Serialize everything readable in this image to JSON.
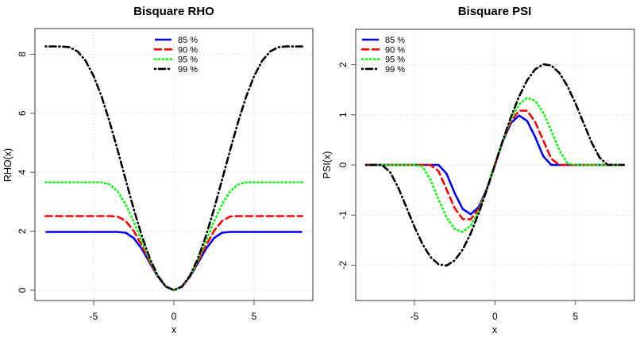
{
  "chart_data": [
    {
      "type": "line",
      "title": "Bisquare RHO",
      "xlabel": "x",
      "ylabel": "RHO(x)",
      "xlim": [
        -8,
        8
      ],
      "ylim": [
        0,
        8.27
      ],
      "xticks": [
        -5,
        0,
        5
      ],
      "yticks": [
        0,
        2,
        4,
        6,
        8
      ],
      "grid": true,
      "legend_position": "top-center",
      "x": [
        -8,
        -7.5,
        -7,
        -6.5,
        -6,
        -5.5,
        -5,
        -4.5,
        -4,
        -3.5,
        -3,
        -2.5,
        -2,
        -1.5,
        -1,
        -0.5,
        0,
        0.5,
        1,
        1.5,
        2,
        2.5,
        3,
        3.5,
        4,
        4.5,
        5,
        5.5,
        6,
        6.5,
        7,
        7.5,
        8
      ],
      "series": [
        {
          "name": "85 %",
          "color": "#0000ff",
          "style": "solid",
          "values": [
            1.977,
            1.977,
            1.977,
            1.977,
            1.977,
            1.977,
            1.977,
            1.977,
            1.977,
            1.977,
            1.949,
            1.767,
            1.401,
            0.925,
            0.459,
            0.122,
            0,
            0.122,
            0.459,
            0.925,
            1.401,
            1.767,
            1.949,
            1.977,
            1.977,
            1.977,
            1.977,
            1.977,
            1.977,
            1.977,
            1.977,
            1.977,
            1.977
          ]
        },
        {
          "name": "90 %",
          "color": "#ff0000",
          "style": "dashed",
          "values": [
            2.513,
            2.513,
            2.513,
            2.513,
            2.513,
            2.513,
            2.513,
            2.513,
            2.513,
            2.496,
            2.348,
            2.009,
            1.516,
            0.965,
            0.468,
            0.123,
            0,
            0.123,
            0.468,
            0.965,
            1.516,
            2.009,
            2.348,
            2.496,
            2.513,
            2.513,
            2.513,
            2.513,
            2.513,
            2.513,
            2.513,
            2.513,
            2.513
          ]
        },
        {
          "name": "95 %",
          "color": "#00ff00",
          "style": "dotted",
          "values": [
            3.658,
            3.658,
            3.658,
            3.658,
            3.658,
            3.658,
            3.658,
            3.657,
            3.585,
            3.343,
            2.907,
            2.32,
            1.658,
            1.014,
            0.478,
            0.124,
            0,
            0.124,
            0.478,
            1.014,
            1.658,
            2.32,
            2.907,
            3.343,
            3.585,
            3.657,
            3.658,
            3.658,
            3.658,
            3.658,
            3.658,
            3.658,
            3.658
          ]
        },
        {
          "name": "99 %",
          "color": "#000000",
          "style": "dotdash",
          "values": [
            8.264,
            8.264,
            8.264,
            8.237,
            8.094,
            7.774,
            7.257,
            6.553,
            5.696,
            4.736,
            3.733,
            2.748,
            1.843,
            1.075,
            0.49,
            0.124,
            0,
            0.124,
            0.49,
            1.075,
            1.843,
            2.748,
            3.733,
            4.736,
            5.696,
            6.553,
            7.257,
            7.774,
            8.094,
            8.237,
            8.264,
            8.264,
            8.264
          ]
        }
      ]
    },
    {
      "type": "line",
      "title": "Bisquare PSI",
      "xlabel": "x",
      "ylabel": "PSI(x)",
      "xlim": [
        -8,
        8
      ],
      "ylim": [
        -2.6,
        2.6
      ],
      "xticks": [
        -5,
        0,
        5
      ],
      "yticks": [
        -2,
        -1,
        0,
        1,
        2
      ],
      "grid": true,
      "legend_position": "top-left",
      "x": [
        -8,
        -7.5,
        -7,
        -6.5,
        -6,
        -5.5,
        -5,
        -4.5,
        -4,
        -3.5,
        -3,
        -2.5,
        -2,
        -1.5,
        -1,
        -0.5,
        0,
        0.5,
        1,
        1.5,
        2,
        2.5,
        3,
        3.5,
        4,
        4.5,
        5,
        5.5,
        6,
        6.5,
        7,
        7.5,
        8
      ],
      "series": [
        {
          "name": "85 %",
          "color": "#0000ff",
          "style": "solid",
          "values": [
            0,
            0,
            0,
            0,
            0,
            0,
            0,
            0,
            0,
            0,
            -0.174,
            -0.559,
            -0.878,
            -0.985,
            -0.838,
            -0.479,
            0,
            0.479,
            0.838,
            0.985,
            0.878,
            0.559,
            0.174,
            0,
            0,
            0,
            0,
            0,
            0,
            0,
            0,
            0,
            0
          ]
        },
        {
          "name": "90 %",
          "color": "#ff0000",
          "style": "dashed",
          "values": [
            0,
            0,
            0,
            0,
            0,
            0,
            0,
            0,
            0,
            -0.123,
            -0.487,
            -0.857,
            -1.08,
            -1.086,
            -0.872,
            -0.484,
            0,
            0.484,
            0.872,
            1.086,
            1.08,
            0.857,
            0.487,
            0.123,
            0,
            0,
            0,
            0,
            0,
            0,
            0,
            0,
            0
          ]
        },
        {
          "name": "95 %",
          "color": "#00ff00",
          "style": "dotted",
          "values": [
            0,
            0,
            0,
            0,
            0,
            0,
            0,
            -0.027,
            -0.294,
            -0.683,
            -1.044,
            -1.279,
            -1.338,
            -1.208,
            -0.911,
            -0.489,
            0,
            0.489,
            0.911,
            1.208,
            1.338,
            1.279,
            1.044,
            0.683,
            0.294,
            0.027,
            0,
            0,
            0,
            0,
            0,
            0,
            0
          ]
        },
        {
          "name": "99 %",
          "color": "#000000",
          "style": "dotdash",
          "values": [
            0,
            0,
            -0.001,
            -0.142,
            -0.45,
            -0.836,
            -1.229,
            -1.575,
            -1.835,
            -1.984,
            -2.01,
            -1.909,
            -1.69,
            -1.367,
            -0.96,
            -0.495,
            0,
            0.495,
            0.96,
            1.367,
            1.69,
            1.909,
            2.01,
            1.984,
            1.835,
            1.575,
            1.229,
            0.836,
            0.45,
            0.142,
            0.001,
            0,
            0
          ]
        }
      ]
    }
  ]
}
